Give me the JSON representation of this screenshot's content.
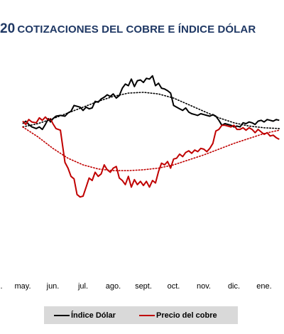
{
  "title": {
    "number": "20",
    "text": "COTIZACIONES DEL COBRE E ÍNDICE DÓLAR"
  },
  "colors": {
    "title": "#1f3864",
    "dollar_index": "#000000",
    "copper": "#c00000",
    "legend_background": "#d9d9d9"
  },
  "legend": [
    {
      "label": "Índice Dólar",
      "color": "#000000"
    },
    {
      "label": "Precio del cobre",
      "color": "#c00000"
    }
  ],
  "chart_data": {
    "type": "line",
    "x_labels": [
      "may.",
      "jun.",
      "jul.",
      "ago.",
      "sept.",
      "oct.",
      "nov.",
      "dic.",
      "ene."
    ],
    "x_label_leading_fragment": ".",
    "y_axis_labels": "none",
    "grid": false,
    "legend_position": "bottom",
    "series": [
      {
        "name": "Índice Dólar",
        "color": "#000000",
        "style": "solid",
        "x": [
          0,
          0.1,
          0.2,
          0.3,
          0.45,
          0.55,
          0.65,
          0.75,
          0.85,
          0.92,
          1.0,
          1.1,
          1.25,
          1.4,
          1.5,
          1.6,
          1.7,
          1.8,
          1.9,
          2.0,
          2.1,
          2.2,
          2.3,
          2.4,
          2.5,
          2.6,
          2.7,
          2.8,
          2.9,
          3.0,
          3.1,
          3.2,
          3.3,
          3.4,
          3.5,
          3.6,
          3.7,
          3.8,
          3.9,
          4.0,
          4.1,
          4.2,
          4.3,
          4.4,
          4.5,
          4.6,
          4.7,
          4.8,
          4.9,
          5.0,
          5.1,
          5.2,
          5.3,
          5.4,
          5.5,
          5.6,
          5.7,
          5.8,
          5.9,
          6.0,
          6.1,
          6.2,
          6.3,
          6.4,
          6.5,
          6.6,
          6.7,
          6.8,
          6.9,
          7.0,
          7.1,
          7.2,
          7.3,
          7.4,
          7.5,
          7.6,
          7.7,
          7.8,
          7.9,
          8.0,
          8.1,
          8.2,
          8.3,
          8.4,
          8.5
        ],
        "values": [
          44,
          47,
          43,
          40,
          38,
          40,
          37,
          43,
          50,
          46,
          50,
          53,
          54,
          53,
          57,
          59,
          66,
          65,
          64,
          60,
          64,
          62,
          63,
          71,
          70,
          74,
          76,
          79,
          77,
          80,
          75,
          78,
          87,
          92,
          90,
          98,
          89,
          96,
          97,
          94,
          99,
          98,
          102,
          90,
          93,
          87,
          86,
          84,
          81,
          66,
          64,
          62,
          60,
          63,
          58,
          56,
          55,
          54,
          56,
          55,
          54,
          53,
          55,
          53,
          48,
          42,
          44,
          43,
          42,
          40,
          41,
          40,
          45,
          44,
          46,
          45,
          43,
          47,
          48,
          46,
          49,
          48,
          47,
          49,
          48
        ]
      },
      {
        "name": "Precio del cobre",
        "color": "#c00000",
        "style": "solid",
        "x": [
          0,
          0.1,
          0.2,
          0.3,
          0.45,
          0.55,
          0.65,
          0.75,
          0.85,
          0.92,
          1.0,
          1.1,
          1.25,
          1.4,
          1.5,
          1.6,
          1.7,
          1.8,
          1.9,
          2.0,
          2.1,
          2.2,
          2.3,
          2.4,
          2.5,
          2.6,
          2.7,
          2.8,
          2.9,
          3.0,
          3.1,
          3.2,
          3.3,
          3.4,
          3.5,
          3.6,
          3.7,
          3.8,
          3.9,
          4.0,
          4.1,
          4.2,
          4.3,
          4.4,
          4.5,
          4.6,
          4.7,
          4.8,
          4.9,
          5.0,
          5.1,
          5.2,
          5.3,
          5.4,
          5.5,
          5.6,
          5.7,
          5.8,
          5.9,
          6.0,
          6.1,
          6.2,
          6.3,
          6.4,
          6.5,
          6.6,
          6.7,
          6.8,
          6.9,
          7.0,
          7.1,
          7.2,
          7.3,
          7.4,
          7.5,
          7.6,
          7.7,
          7.8,
          7.9,
          8.0,
          8.1,
          8.2,
          8.3,
          8.4,
          8.5
        ],
        "values": [
          47,
          43,
          49,
          46,
          45,
          51,
          48,
          52,
          48,
          50,
          44,
          38,
          36,
          -3,
          -10,
          -20,
          -23,
          -42,
          -45,
          -44,
          -33,
          -22,
          -25,
          -15,
          -20,
          -17,
          -6,
          -12,
          -15,
          -10,
          -8,
          -22,
          -25,
          -30,
          -20,
          -33,
          -24,
          -30,
          -26,
          -31,
          -26,
          -33,
          -25,
          -28,
          -14,
          -4,
          -6,
          -2,
          -10,
          1,
          2,
          7,
          4,
          9,
          11,
          8,
          12,
          10,
          14,
          13,
          10,
          14,
          20,
          35,
          37,
          42,
          42,
          41,
          40,
          42,
          37,
          37,
          39,
          36,
          39,
          37,
          33,
          37,
          34,
          31,
          33,
          29,
          30,
          27,
          25
        ]
      },
      {
        "name": "",
        "color": "#000000",
        "style": "dotted",
        "note_visible": false,
        "x": [
          0,
          0.5,
          1,
          1.5,
          2,
          2.5,
          3,
          3.5,
          4,
          4.5,
          5,
          5.5,
          6,
          6.5,
          7,
          7.5,
          8,
          8.5
        ],
        "values": [
          40,
          44,
          50,
          57,
          64,
          71,
          77,
          81,
          82,
          80,
          75,
          67,
          59,
          51,
          45,
          41,
          39,
          38
        ]
      },
      {
        "name": "",
        "color": "#c00000",
        "style": "dotted",
        "x": [
          0,
          0.5,
          1,
          1.5,
          2,
          2.5,
          3,
          3.5,
          4,
          4.5,
          5,
          5.5,
          6,
          6.5,
          7,
          7.5,
          8,
          8.5
        ],
        "values": [
          40,
          28,
          14,
          2,
          -6,
          -11,
          -13,
          -13,
          -12,
          -10,
          -6,
          0,
          6,
          13,
          20,
          26,
          32,
          36
        ]
      }
    ]
  }
}
